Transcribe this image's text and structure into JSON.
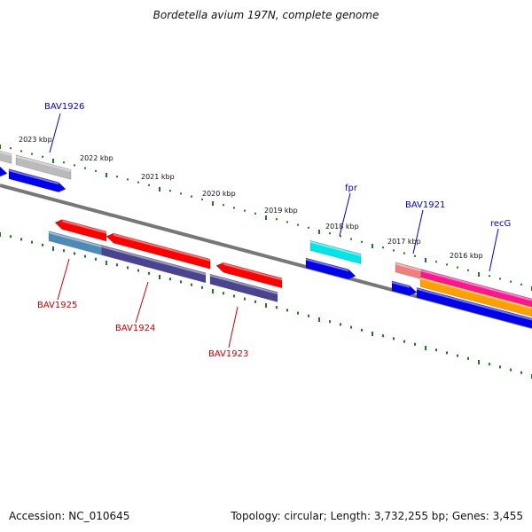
{
  "title": "Bordetella avium 197N, complete genome",
  "footer": {
    "accession": "Accession: NC_010645",
    "summary": "Topology: circular; Length: 3,732,255 bp; Genes: 3,455"
  },
  "scale_labels": [
    "2023 kbp",
    "2022 kbp",
    "2021 kbp",
    "2020 kbp",
    "2019 kbp",
    "2018 kbp",
    "2017 kbp",
    "2016 kbp"
  ],
  "gene_labels": {
    "plus": [
      "BAV1926",
      "fpr",
      "BAV1921",
      "recG"
    ],
    "minus": [
      "BAV1925",
      "BAV1924",
      "BAV1923"
    ]
  },
  "colors": {
    "label_plus": "#0000cc",
    "label_minus": "#cc0000",
    "tick": "#1a7a1a",
    "backbone": "#777777",
    "red": "#ff0000",
    "blue": "#0000ee",
    "gray": "#bbbbbb",
    "cyan": "#00e5e5",
    "navy": "#4a4490",
    "steel": "#4d8ab8",
    "salmon": "#f08080",
    "magenta": "#ff1493",
    "orange": "#ff9f00"
  }
}
